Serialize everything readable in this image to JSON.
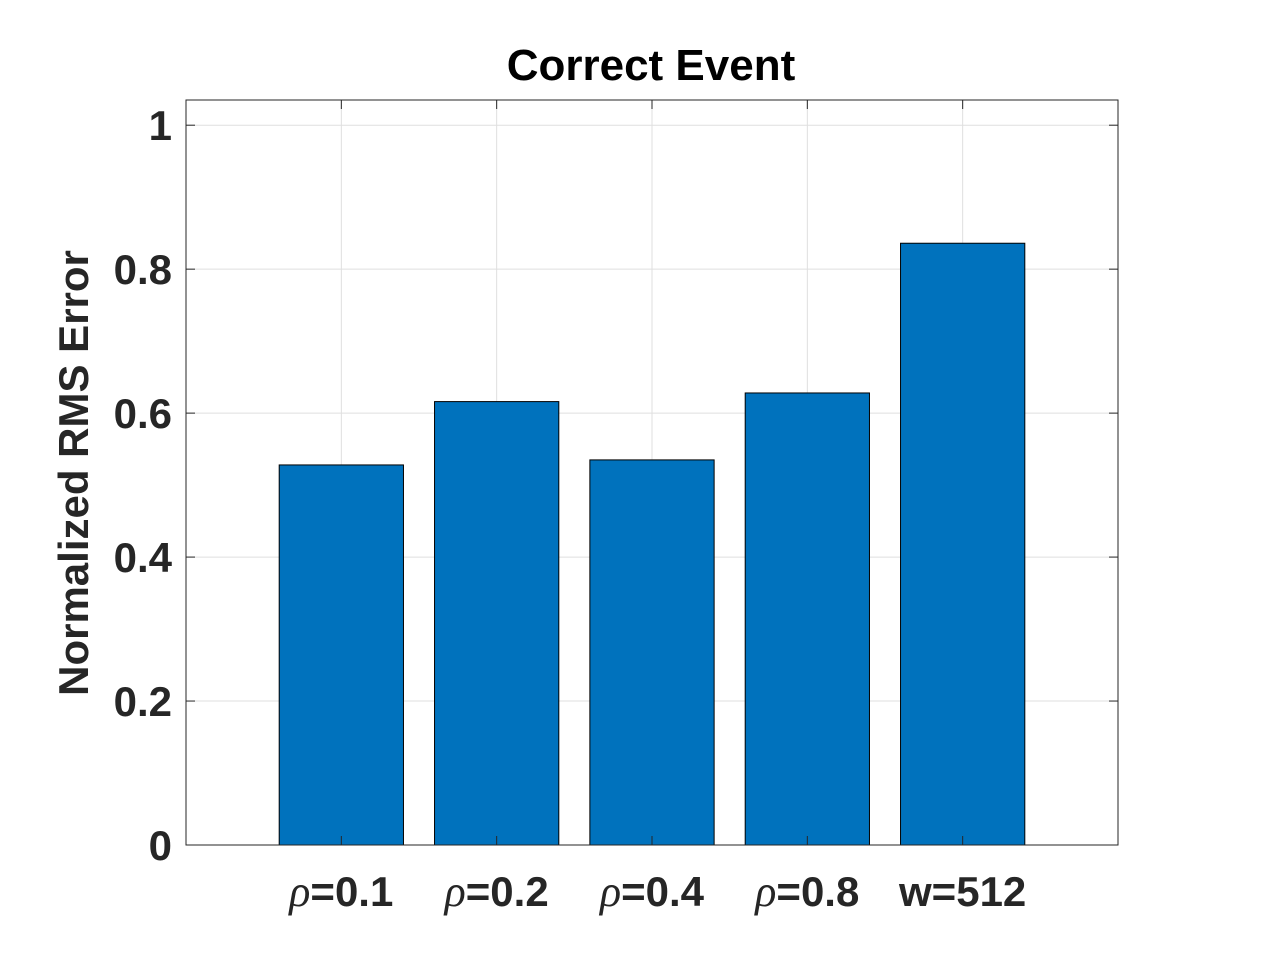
{
  "chart_data": {
    "type": "bar",
    "title": "Correct Event",
    "xlabel": "",
    "ylabel": "Normalized RMS Error",
    "categories": [
      {
        "symbol": "ρ",
        "text": "=0.1"
      },
      {
        "symbol": "ρ",
        "text": "=0.2"
      },
      {
        "symbol": "ρ",
        "text": "=0.4"
      },
      {
        "symbol": "ρ",
        "text": "=0.8"
      },
      {
        "symbol": "",
        "text": "w=512"
      }
    ],
    "values": [
      0.528,
      0.616,
      0.535,
      0.628,
      0.836
    ],
    "ylim": [
      0,
      1.0
    ],
    "yticks": [
      0,
      0.2,
      0.4,
      0.6,
      0.8,
      1
    ],
    "ytick_labels": [
      "0",
      "0.2",
      "0.4",
      "0.6",
      "0.8",
      "1"
    ],
    "xlim": [
      0,
      6
    ],
    "grid": true,
    "bar_color": "#0072BD",
    "bar_edge_color": "#000000"
  }
}
